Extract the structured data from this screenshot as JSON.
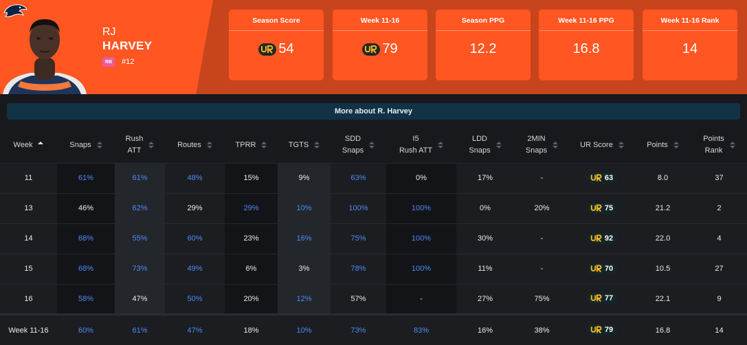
{
  "player": {
    "first_name": "RJ",
    "last_name": "HARVEY",
    "position": "RB",
    "jersey": "#12",
    "team_logo_icon": "broncos-logo-icon"
  },
  "stat_cards": [
    {
      "label": "Season Score",
      "value": "54",
      "has_ur_logo": true
    },
    {
      "label": "Week 11-16",
      "value": "79",
      "has_ur_logo": true
    },
    {
      "label": "Season PPG",
      "value": "12.2",
      "has_ur_logo": false
    },
    {
      "label": "Week 11-16 PPG",
      "value": "16.8",
      "has_ur_logo": false
    },
    {
      "label": "Week 11-16 Rank",
      "value": "14",
      "has_ur_logo": false
    }
  ],
  "more_about": "More about R. Harvey",
  "columns": [
    {
      "label": "Week"
    },
    {
      "label": "Snaps"
    },
    {
      "label": "Rush\nATT"
    },
    {
      "label": "Routes"
    },
    {
      "label": "TPRR"
    },
    {
      "label": "TGTS"
    },
    {
      "label": "SDD\nSnaps"
    },
    {
      "label": "I5\nRush ATT"
    },
    {
      "label": "LDD\nSnaps"
    },
    {
      "label": "2MIN\nSnaps"
    },
    {
      "label": "UR Score"
    },
    {
      "label": "Points"
    },
    {
      "label": "Points\nRank"
    }
  ],
  "rows": [
    {
      "cells": [
        "11",
        "61%",
        "61%",
        "48%",
        "15%",
        "9%",
        "63%",
        "0%",
        "17%",
        "-",
        "63",
        "8.0",
        "37"
      ],
      "blue": [
        false,
        true,
        true,
        true,
        false,
        false,
        true,
        false,
        false,
        false,
        false,
        false,
        false
      ]
    },
    {
      "cells": [
        "13",
        "46%",
        "62%",
        "29%",
        "29%",
        "10%",
        "100%",
        "100%",
        "0%",
        "20%",
        "75",
        "21.2",
        "2"
      ],
      "blue": [
        false,
        false,
        true,
        false,
        true,
        true,
        true,
        true,
        false,
        false,
        false,
        false,
        false
      ]
    },
    {
      "cells": [
        "14",
        "68%",
        "55%",
        "60%",
        "23%",
        "16%",
        "75%",
        "100%",
        "30%",
        "-",
        "92",
        "22.0",
        "4"
      ],
      "blue": [
        false,
        true,
        true,
        true,
        false,
        true,
        true,
        true,
        false,
        false,
        false,
        false,
        false
      ]
    },
    {
      "cells": [
        "15",
        "68%",
        "73%",
        "49%",
        "6%",
        "3%",
        "78%",
        "100%",
        "11%",
        "-",
        "70",
        "10.5",
        "27"
      ],
      "blue": [
        false,
        true,
        true,
        true,
        false,
        false,
        true,
        true,
        false,
        false,
        false,
        false,
        false
      ]
    },
    {
      "cells": [
        "16",
        "58%",
        "47%",
        "50%",
        "20%",
        "12%",
        "57%",
        "-",
        "27%",
        "75%",
        "77",
        "22.1",
        "9"
      ],
      "blue": [
        false,
        true,
        false,
        true,
        false,
        true,
        false,
        false,
        false,
        false,
        false,
        false,
        false
      ]
    }
  ],
  "total": {
    "cells": [
      "Week 11-16",
      "60%",
      "61%",
      "47%",
      "18%",
      "10%",
      "73%",
      "83%",
      "16%",
      "38%",
      "79",
      "16.8",
      "14"
    ],
    "blue": [
      false,
      true,
      true,
      true,
      false,
      true,
      true,
      true,
      false,
      false,
      false,
      false,
      false
    ]
  },
  "colors": {
    "accent_orange": "#ff5622",
    "header_bg": "#c8441c",
    "blue_value": "#4f8cf8",
    "ur_gold": "#f2b51d"
  }
}
